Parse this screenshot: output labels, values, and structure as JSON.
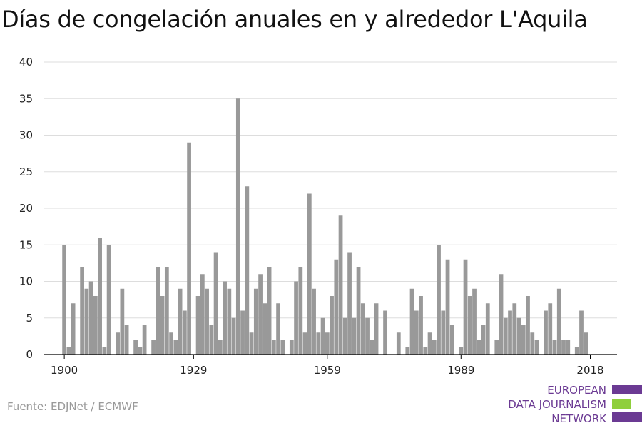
{
  "title": "Días de congelación anuales en y alrededor L'Aquila",
  "source": "Fuente: EDJNet / ECMWF",
  "logo": {
    "lines": [
      "EUROPEAN",
      "DATA JOURNALISM",
      "NETWORK"
    ],
    "colors": {
      "text": "#6b3a93",
      "bar_purple": "#6b3a93",
      "bar_green": "#8fcf3c"
    }
  },
  "colors": {
    "bar": "#999999",
    "grid": "#dddddd",
    "axis": "#000000",
    "text": "#222222"
  },
  "chart_data": {
    "type": "bar",
    "title": "Días de congelación anuales en y alrededor L'Aquila",
    "xlabel": "",
    "ylabel": "",
    "ylim": [
      0,
      40
    ],
    "yticks": [
      0,
      5,
      10,
      15,
      20,
      25,
      30,
      35,
      40
    ],
    "xticks": [
      1900,
      1929,
      1959,
      1989,
      2018
    ],
    "grid": true,
    "legend": "none",
    "x": [
      1900,
      1901,
      1902,
      1903,
      1904,
      1905,
      1906,
      1907,
      1908,
      1909,
      1910,
      1911,
      1912,
      1913,
      1914,
      1915,
      1916,
      1917,
      1918,
      1919,
      1920,
      1921,
      1922,
      1923,
      1924,
      1925,
      1926,
      1927,
      1928,
      1929,
      1930,
      1931,
      1932,
      1933,
      1934,
      1935,
      1936,
      1937,
      1938,
      1939,
      1940,
      1941,
      1942,
      1943,
      1944,
      1945,
      1946,
      1947,
      1948,
      1949,
      1950,
      1951,
      1952,
      1953,
      1954,
      1955,
      1956,
      1957,
      1958,
      1959,
      1960,
      1961,
      1962,
      1963,
      1964,
      1965,
      1966,
      1967,
      1968,
      1969,
      1970,
      1971,
      1972,
      1973,
      1974,
      1975,
      1976,
      1977,
      1978,
      1979,
      1980,
      1981,
      1982,
      1983,
      1984,
      1985,
      1986,
      1987,
      1988,
      1989,
      1990,
      1991,
      1992,
      1993,
      1994,
      1995,
      1996,
      1997,
      1998,
      1999,
      2000,
      2001,
      2002,
      2003,
      2004,
      2005,
      2006,
      2007,
      2008,
      2009,
      2010,
      2011,
      2012,
      2013,
      2014,
      2015,
      2016,
      2017,
      2018,
      2019
    ],
    "values": [
      15,
      1,
      7,
      0,
      12,
      9,
      10,
      8,
      16,
      1,
      15,
      0,
      3,
      9,
      4,
      0,
      2,
      1,
      4,
      0,
      2,
      12,
      8,
      12,
      3,
      2,
      9,
      6,
      29,
      0,
      8,
      11,
      9,
      4,
      14,
      2,
      10,
      9,
      5,
      35,
      6,
      23,
      3,
      9,
      11,
      7,
      12,
      2,
      7,
      2,
      0,
      2,
      10,
      12,
      3,
      22,
      9,
      3,
      5,
      3,
      8,
      13,
      19,
      5,
      14,
      5,
      12,
      7,
      5,
      2,
      7,
      0,
      6,
      0,
      0,
      3,
      0,
      1,
      9,
      6,
      8,
      1,
      3,
      2,
      15,
      6,
      13,
      4,
      0,
      1,
      13,
      8,
      9,
      2,
      4,
      7,
      0,
      2,
      11,
      5,
      6,
      7,
      5,
      4,
      8,
      3,
      2,
      0,
      6,
      7,
      2,
      9,
      2,
      2,
      0,
      1,
      6,
      3,
      0,
      0
    ]
  }
}
